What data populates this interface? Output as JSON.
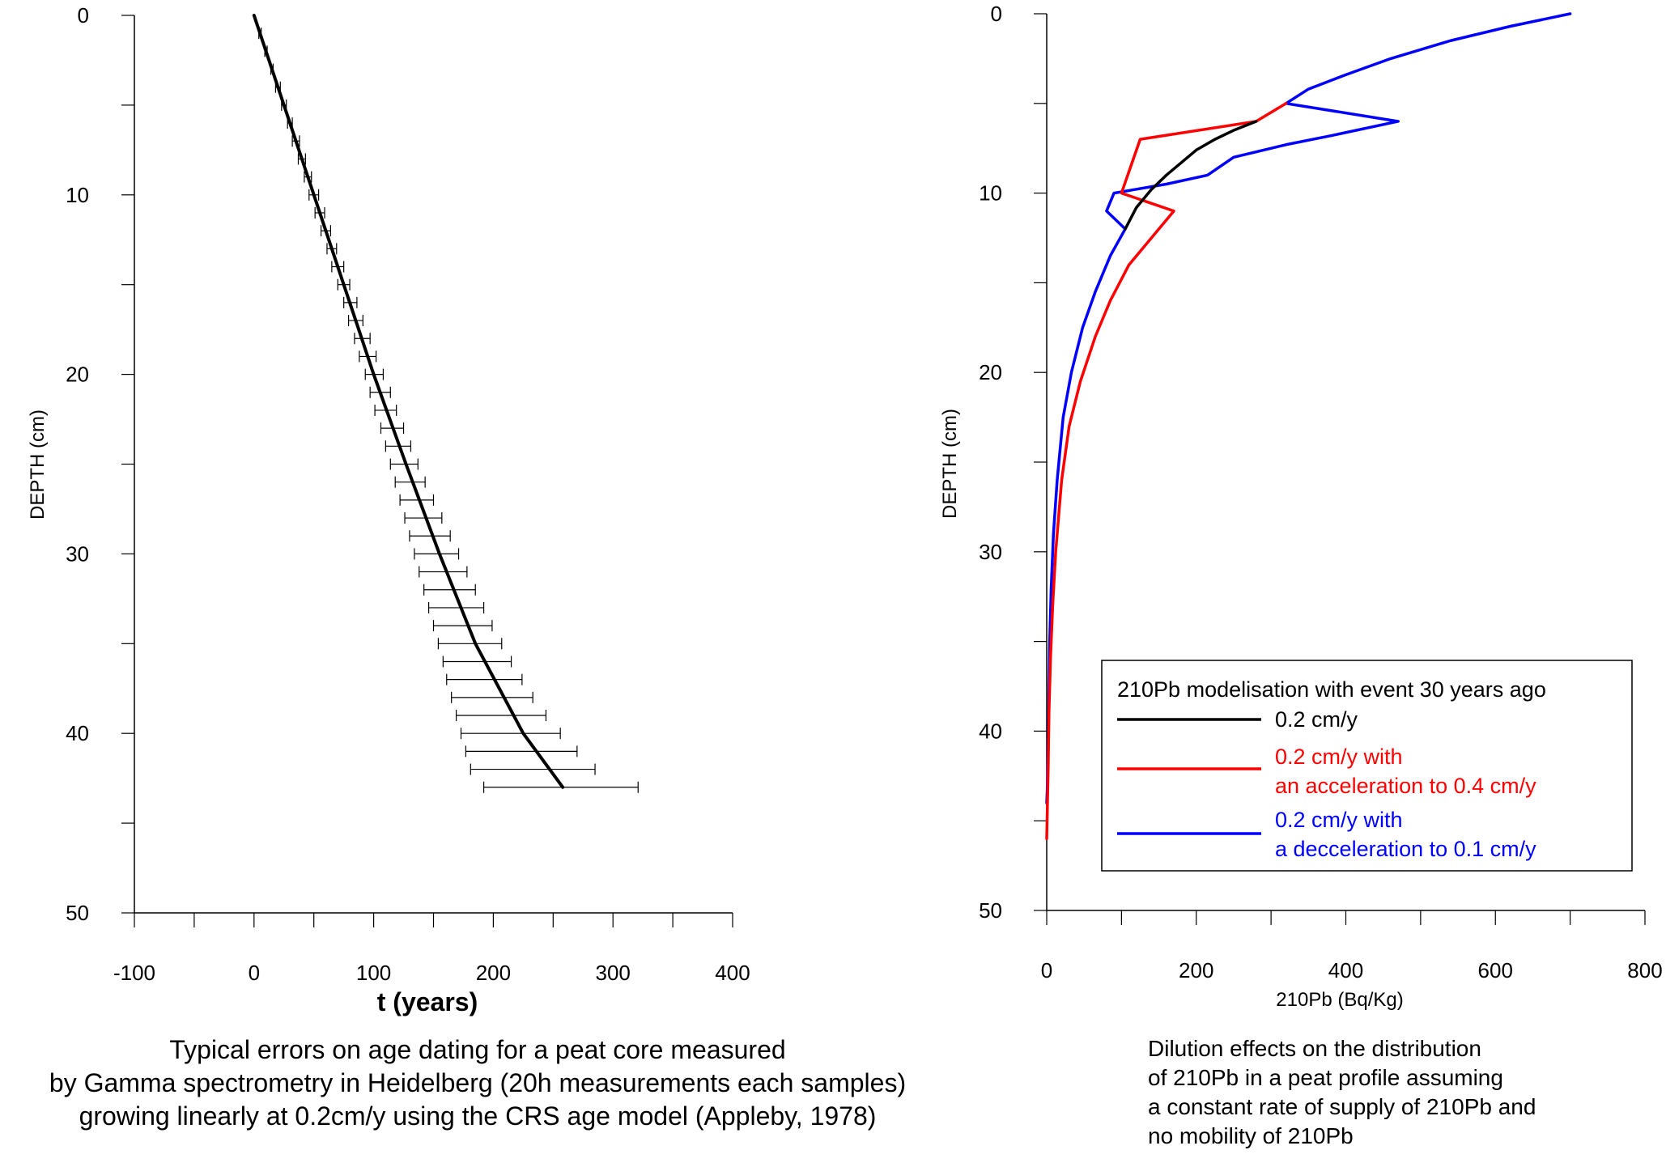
{
  "chart_data": [
    {
      "type": "line",
      "panel": "left",
      "xlabel": "t (years)",
      "ylabel": "DEPTH (cm)",
      "xlim": [
        -100,
        400
      ],
      "ylim": [
        0,
        50
      ],
      "y_inverted": true,
      "x_ticks": [
        "-100",
        "0",
        "100",
        "200",
        "300",
        "400"
      ],
      "y_ticks": [
        "0",
        "10",
        "20",
        "30",
        "40",
        "50"
      ],
      "grid": false,
      "series": [
        {
          "color": "#000000",
          "depth": [
            0,
            5,
            10,
            15,
            20,
            25,
            30,
            35,
            40,
            43
          ],
          "t": [
            0,
            25,
            50,
            75,
            100,
            127,
            155,
            185,
            225,
            258
          ]
        }
      ],
      "error_bars": {
        "depth": [
          0,
          1,
          2,
          3,
          4,
          5,
          6,
          7,
          8,
          9,
          10,
          11,
          12,
          13,
          14,
          15,
          16,
          17,
          18,
          19,
          20,
          21,
          22,
          23,
          24,
          25,
          26,
          27,
          28,
          29,
          30,
          31,
          32,
          33,
          34,
          35,
          36,
          37,
          38,
          39,
          40,
          41,
          42,
          43
        ],
        "lower": [
          0,
          4,
          9,
          14,
          18,
          23,
          28,
          32,
          37,
          42,
          46,
          51,
          56,
          61,
          65,
          70,
          75,
          79,
          84,
          88,
          93,
          97,
          101,
          106,
          110,
          114,
          118,
          122,
          126,
          130,
          134,
          138,
          142,
          146,
          150,
          154,
          158,
          161,
          165,
          169,
          173,
          177,
          181,
          192
        ],
        "upper": [
          0,
          6,
          11,
          16,
          22,
          27,
          32,
          38,
          43,
          48,
          54,
          59,
          64,
          69,
          75,
          80,
          86,
          91,
          97,
          102,
          108,
          114,
          119,
          125,
          131,
          137,
          143,
          150,
          157,
          164,
          171,
          178,
          185,
          192,
          199,
          207,
          215,
          224,
          233,
          244,
          256,
          270,
          285,
          321
        ]
      },
      "caption": [
        "Typical errors on age dating for a peat core measured",
        "by Gamma spectrometry in Heidelberg (20h measurements each samples)",
        "growing linearly at 0.2cm/y using the CRS age model (Appleby, 1978)"
      ]
    },
    {
      "type": "line",
      "panel": "right",
      "xlabel": "210Pb (Bq/Kg)",
      "ylabel": "DEPTH (cm)",
      "xlim": [
        0,
        800
      ],
      "ylim": [
        0,
        50
      ],
      "y_inverted": true,
      "x_ticks": [
        "0",
        "200",
        "400",
        "600",
        "800"
      ],
      "y_ticks": [
        "0",
        "10",
        "20",
        "30",
        "40",
        "50"
      ],
      "grid": false,
      "legend": {
        "title": "210Pb modelisation with event 30 years ago",
        "position": "bottom-right"
      },
      "series": [
        {
          "name_lines": [
            "0.2 cm/y"
          ],
          "color": "#000000",
          "x": [
            280,
            250,
            225,
            200,
            180,
            160,
            140,
            120,
            105
          ],
          "y": [
            6,
            6.5,
            7,
            7.6,
            8.3,
            9,
            9.8,
            10.8,
            12
          ]
        },
        {
          "name_lines": [
            "0.2 cm/y with",
            "an acceleration to 0.4 cm/y"
          ],
          "color": "#ff0000",
          "x": [
            320,
            280,
            125,
            100,
            170,
            140,
            110,
            85,
            65,
            45,
            30,
            20,
            12,
            8,
            5,
            3,
            2,
            1,
            0
          ],
          "y": [
            5,
            6,
            7,
            10,
            11,
            12.5,
            14,
            16,
            18,
            20.5,
            23,
            26,
            30,
            33,
            36,
            39,
            42,
            44,
            46
          ]
        },
        {
          "name_lines": [
            "0.2 cm/y with",
            "a decceleration to 0.1 cm/y"
          ],
          "color": "#0000ff",
          "x": [
            700,
            620,
            540,
            460,
            400,
            350,
            320,
            470,
            380,
            320,
            250,
            215,
            160,
            90,
            80,
            105,
            85,
            65,
            48,
            33,
            22,
            14,
            9,
            6,
            4,
            3,
            2,
            1,
            0
          ],
          "y": [
            0,
            0.7,
            1.5,
            2.5,
            3.4,
            4.2,
            5,
            6,
            6.8,
            7.3,
            8,
            9,
            9.5,
            10,
            11,
            12,
            13.5,
            15.5,
            17.5,
            20,
            22.5,
            26,
            29,
            32,
            35,
            38,
            41,
            43,
            44
          ]
        }
      ],
      "caption": [
        "Dilution effects on the distribution",
        "of 210Pb in a peat profile assuming",
        "a constant rate of supply of 210Pb and",
        "no mobility of 210Pb"
      ]
    }
  ]
}
